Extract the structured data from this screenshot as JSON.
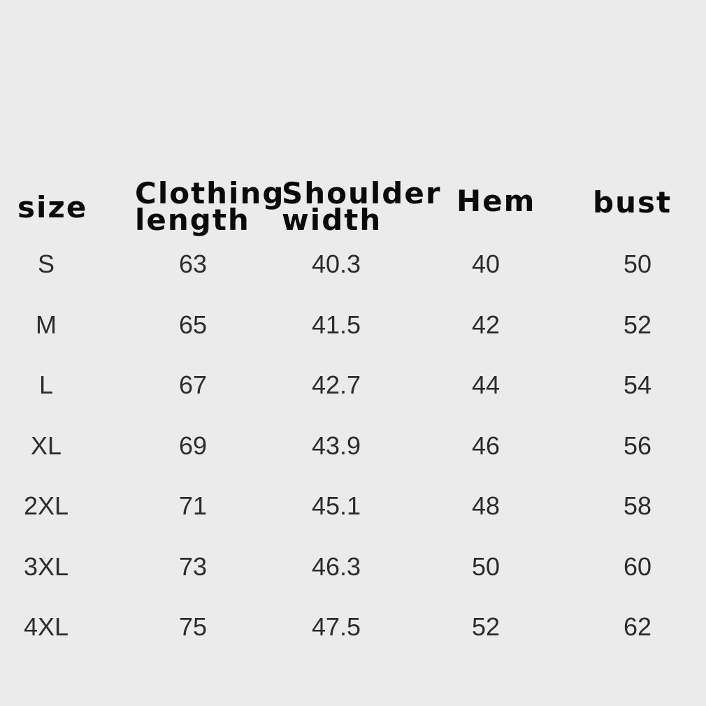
{
  "headers": {
    "size": "size",
    "clothing_length": [
      "Clothing",
      "length"
    ],
    "shoulder_width": [
      "Shoulder",
      "width"
    ],
    "hem": "Hem",
    "bust": "bust"
  },
  "rows": [
    {
      "size": "S",
      "clothing_length": "63",
      "shoulder_width": "40.3",
      "hem": "40",
      "bust": "50"
    },
    {
      "size": "M",
      "clothing_length": "65",
      "shoulder_width": "41.5",
      "hem": "42",
      "bust": "52"
    },
    {
      "size": "L",
      "clothing_length": "67",
      "shoulder_width": "42.7",
      "hem": "44",
      "bust": "54"
    },
    {
      "size": "XL",
      "clothing_length": "69",
      "shoulder_width": "43.9",
      "hem": "46",
      "bust": "56"
    },
    {
      "size": "2XL",
      "clothing_length": "71",
      "shoulder_width": "45.1",
      "hem": "48",
      "bust": "58"
    },
    {
      "size": "3XL",
      "clothing_length": "73",
      "shoulder_width": "46.3",
      "hem": "50",
      "bust": "60"
    },
    {
      "size": "4XL",
      "clothing_length": "75",
      "shoulder_width": "47.5",
      "hem": "52",
      "bust": "62"
    }
  ]
}
